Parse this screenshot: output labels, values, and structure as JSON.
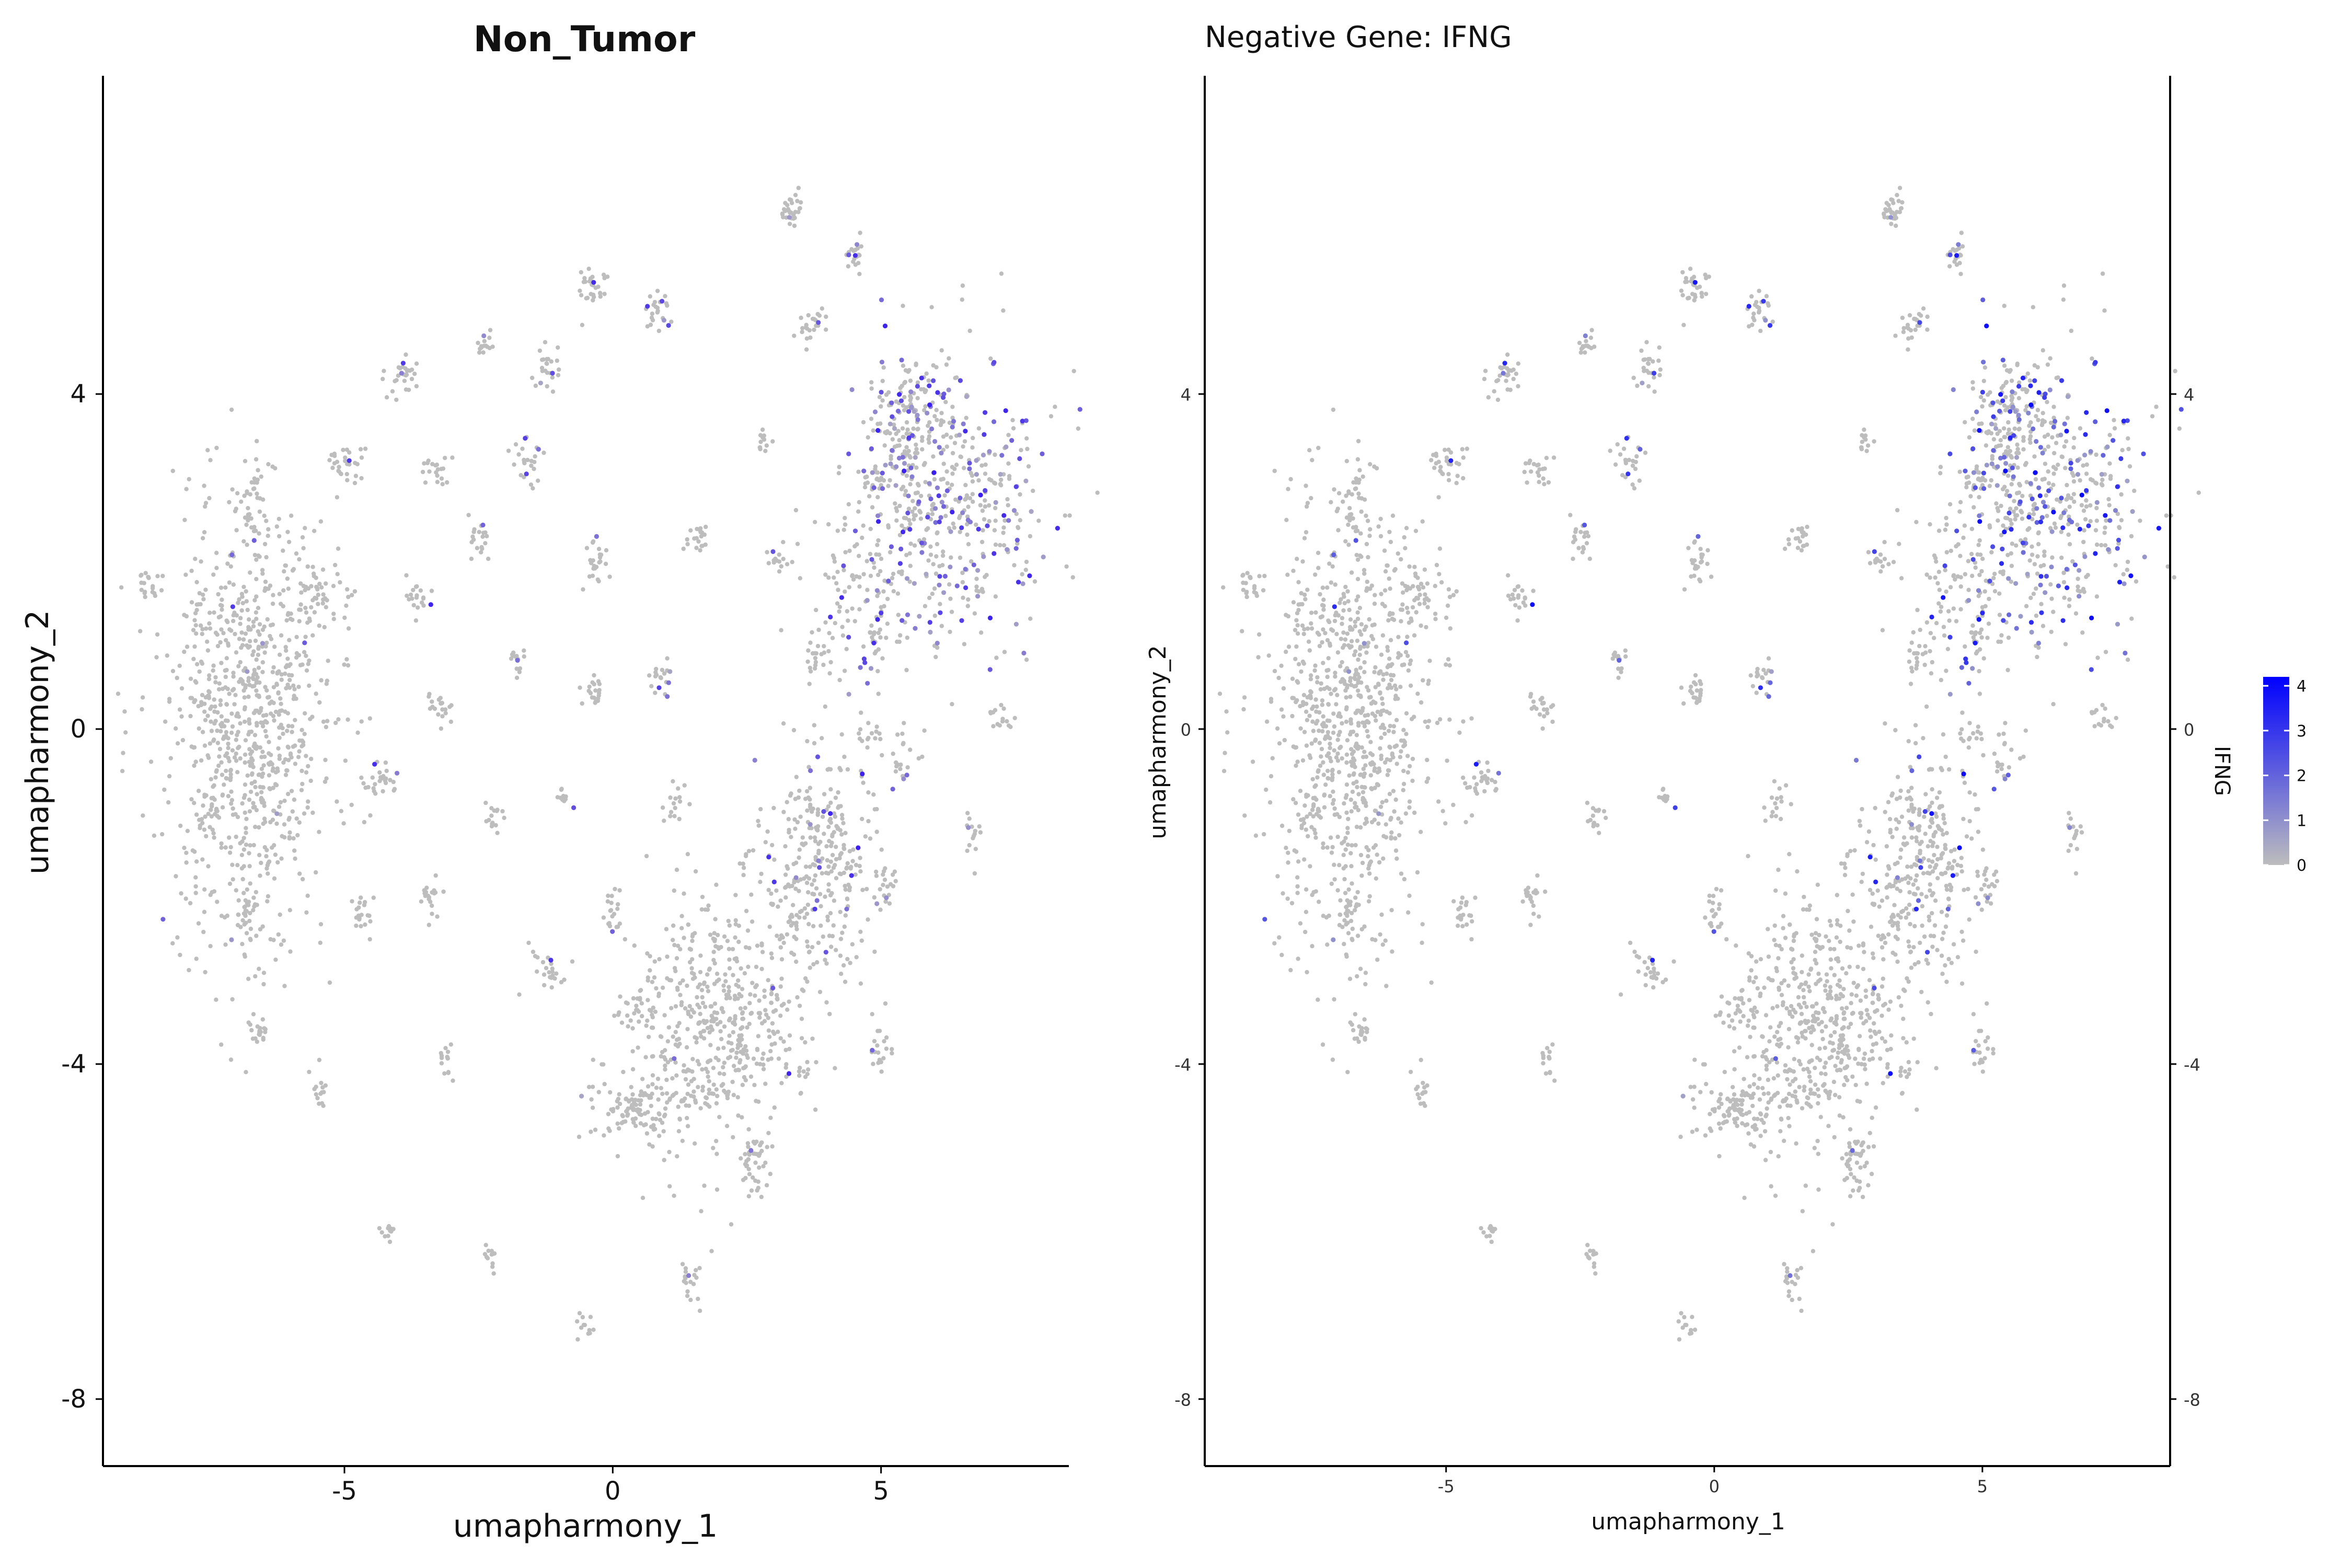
{
  "chart_data": [
    {
      "type": "scatter",
      "title": "Non_Tumor",
      "xlabel": "umapharmony_1",
      "ylabel": "umapharmony_2",
      "xlim": [
        -9.5,
        8.5
      ],
      "ylim": [
        -8.8,
        7.8
      ],
      "x_ticks": [
        -5,
        0,
        5
      ],
      "y_ticks": [
        -8,
        -4,
        0,
        4
      ],
      "grid": false,
      "point_color_low": "#bdbdbd",
      "point_color_high": "#3a1ff0",
      "series": [
        {
          "clusters": [
            {
              "cx": -6.8,
              "cy": 0.0,
              "sx": 0.75,
              "sy": 1.35,
              "n": 900,
              "expr": 0.01
            },
            {
              "cx": -5.5,
              "cy": 1.6,
              "sx": 0.25,
              "sy": 0.25,
              "n": 40,
              "expr": 0.01
            },
            {
              "cx": 2.0,
              "cy": -3.5,
              "sx": 0.75,
              "sy": 0.75,
              "n": 520,
              "expr": 0.01
            },
            {
              "cx": 3.8,
              "cy": -1.6,
              "sx": 0.55,
              "sy": 0.75,
              "n": 330,
              "expr": 0.07
            },
            {
              "cx": 6.3,
              "cy": 2.8,
              "sx": 0.85,
              "sy": 0.85,
              "n": 480,
              "expr": 0.3
            },
            {
              "cx": 5.5,
              "cy": 3.7,
              "sx": 0.4,
              "sy": 0.4,
              "n": 120,
              "expr": 0.15
            },
            {
              "cx": 4.6,
              "cy": 1.5,
              "sx": 0.55,
              "sy": 0.6,
              "n": 120,
              "expr": 0.12
            },
            {
              "cx": 0.4,
              "cy": -4.5,
              "sx": 0.45,
              "sy": 0.2,
              "n": 110,
              "expr": 0.01
            },
            {
              "cx": 2.6,
              "cy": -5.2,
              "sx": 0.12,
              "sy": 0.2,
              "n": 40,
              "expr": 0.01
            },
            {
              "cx": 3.3,
              "cy": 6.2,
              "sx": 0.12,
              "sy": 0.1,
              "n": 30,
              "expr": 0.02
            },
            {
              "cx": 4.5,
              "cy": 5.7,
              "sx": 0.1,
              "sy": 0.1,
              "n": 20,
              "expr": 0.1
            },
            {
              "cx": -0.4,
              "cy": 5.3,
              "sx": 0.14,
              "sy": 0.12,
              "n": 30,
              "expr": 0.05
            },
            {
              "cx": 0.8,
              "cy": 5.0,
              "sx": 0.14,
              "sy": 0.1,
              "n": 25,
              "expr": 0.15
            },
            {
              "cx": 3.7,
              "cy": 4.8,
              "sx": 0.14,
              "sy": 0.12,
              "n": 25,
              "expr": 0.03
            },
            {
              "cx": -1.2,
              "cy": 4.3,
              "sx": 0.12,
              "sy": 0.14,
              "n": 25,
              "expr": 0.02
            },
            {
              "cx": -2.4,
              "cy": 4.6,
              "sx": 0.1,
              "sy": 0.08,
              "n": 15,
              "expr": 0.02
            },
            {
              "cx": -3.9,
              "cy": 4.2,
              "sx": 0.14,
              "sy": 0.12,
              "n": 30,
              "expr": 0.05
            },
            {
              "cx": -5.0,
              "cy": 3.2,
              "sx": 0.18,
              "sy": 0.12,
              "n": 30,
              "expr": 0.05
            },
            {
              "cx": -6.7,
              "cy": 2.7,
              "sx": 0.1,
              "sy": 0.22,
              "n": 30,
              "expr": 0.02
            },
            {
              "cx": -8.7,
              "cy": 1.7,
              "sx": 0.14,
              "sy": 0.1,
              "n": 20,
              "expr": 0.01
            },
            {
              "cx": -3.3,
              "cy": 3.1,
              "sx": 0.12,
              "sy": 0.12,
              "n": 20,
              "expr": 0.02
            },
            {
              "cx": -1.6,
              "cy": 3.2,
              "sx": 0.14,
              "sy": 0.14,
              "n": 25,
              "expr": 0.1
            },
            {
              "cx": -2.5,
              "cy": 2.3,
              "sx": 0.12,
              "sy": 0.12,
              "n": 20,
              "expr": 0.03
            },
            {
              "cx": -3.6,
              "cy": 1.6,
              "sx": 0.12,
              "sy": 0.12,
              "n": 20,
              "expr": 0.03
            },
            {
              "cx": -0.3,
              "cy": 2.0,
              "sx": 0.12,
              "sy": 0.14,
              "n": 25,
              "expr": 0.03
            },
            {
              "cx": 1.6,
              "cy": 2.3,
              "sx": 0.1,
              "sy": 0.1,
              "n": 20,
              "expr": 0.02
            },
            {
              "cx": 2.8,
              "cy": 3.4,
              "sx": 0.08,
              "sy": 0.08,
              "n": 12,
              "expr": 0.05
            },
            {
              "cx": 3.1,
              "cy": 2.0,
              "sx": 0.1,
              "sy": 0.1,
              "n": 15,
              "expr": 0.1
            },
            {
              "cx": -1.8,
              "cy": 0.9,
              "sx": 0.1,
              "sy": 0.12,
              "n": 15,
              "expr": 0.02
            },
            {
              "cx": -0.4,
              "cy": 0.4,
              "sx": 0.12,
              "sy": 0.1,
              "n": 20,
              "expr": 0.02
            },
            {
              "cx": 0.9,
              "cy": 0.6,
              "sx": 0.1,
              "sy": 0.12,
              "n": 20,
              "expr": 0.05
            },
            {
              "cx": -3.2,
              "cy": 0.2,
              "sx": 0.12,
              "sy": 0.1,
              "n": 20,
              "expr": 0.02
            },
            {
              "cx": -4.3,
              "cy": -0.6,
              "sx": 0.16,
              "sy": 0.12,
              "n": 25,
              "expr": 0.02
            },
            {
              "cx": -2.2,
              "cy": -1.1,
              "sx": 0.1,
              "sy": 0.1,
              "n": 15,
              "expr": 0.02
            },
            {
              "cx": -0.9,
              "cy": -0.8,
              "sx": 0.1,
              "sy": 0.08,
              "n": 12,
              "expr": 0.02
            },
            {
              "cx": 1.2,
              "cy": -0.9,
              "sx": 0.1,
              "sy": 0.14,
              "n": 15,
              "expr": 0.03
            },
            {
              "cx": -3.4,
              "cy": -2.0,
              "sx": 0.1,
              "sy": 0.14,
              "n": 20,
              "expr": 0.02
            },
            {
              "cx": -4.7,
              "cy": -2.2,
              "sx": 0.1,
              "sy": 0.14,
              "n": 20,
              "expr": 0.02
            },
            {
              "cx": -6.8,
              "cy": -2.3,
              "sx": 0.1,
              "sy": 0.2,
              "n": 25,
              "expr": 0.02
            },
            {
              "cx": 0.0,
              "cy": -2.2,
              "sx": 0.1,
              "sy": 0.14,
              "n": 20,
              "expr": 0.02
            },
            {
              "cx": -1.2,
              "cy": -2.9,
              "sx": 0.16,
              "sy": 0.14,
              "n": 25,
              "expr": 0.02
            },
            {
              "cx": -6.6,
              "cy": -3.6,
              "sx": 0.1,
              "sy": 0.1,
              "n": 20,
              "expr": 0.02
            },
            {
              "cx": -5.5,
              "cy": -4.3,
              "sx": 0.08,
              "sy": 0.1,
              "n": 15,
              "expr": 0.02
            },
            {
              "cx": -3.1,
              "cy": -4.0,
              "sx": 0.1,
              "sy": 0.1,
              "n": 15,
              "expr": 0.02
            },
            {
              "cx": 3.6,
              "cy": -4.1,
              "sx": 0.08,
              "sy": 0.08,
              "n": 10,
              "expr": 0.05
            },
            {
              "cx": 5.0,
              "cy": -3.8,
              "sx": 0.1,
              "sy": 0.14,
              "n": 20,
              "expr": 0.1
            },
            {
              "cx": 5.1,
              "cy": -1.9,
              "sx": 0.1,
              "sy": 0.12,
              "n": 15,
              "expr": 0.03
            },
            {
              "cx": 4.8,
              "cy": -0.1,
              "sx": 0.1,
              "sy": 0.1,
              "n": 15,
              "expr": 0.05
            },
            {
              "cx": 5.5,
              "cy": -0.3,
              "sx": 0.2,
              "sy": 0.2,
              "n": 20,
              "expr": 0.05
            },
            {
              "cx": 6.7,
              "cy": -1.3,
              "sx": 0.1,
              "sy": 0.14,
              "n": 15,
              "expr": 0.1
            },
            {
              "cx": 7.2,
              "cy": 0.1,
              "sx": 0.12,
              "sy": 0.12,
              "n": 15,
              "expr": 0.05
            },
            {
              "cx": 4.9,
              "cy": 3.0,
              "sx": 0.12,
              "sy": 0.1,
              "n": 20,
              "expr": 0.1
            },
            {
              "cx": 3.8,
              "cy": 0.9,
              "sx": 0.1,
              "sy": 0.1,
              "n": 15,
              "expr": 0.05
            },
            {
              "cx": 4.9,
              "cy": 1.1,
              "sx": 0.1,
              "sy": 0.12,
              "n": 15,
              "expr": 0.05
            },
            {
              "cx": -4.2,
              "cy": -6.0,
              "sx": 0.08,
              "sy": 0.08,
              "n": 12,
              "expr": 0.02
            },
            {
              "cx": -2.3,
              "cy": -6.3,
              "sx": 0.08,
              "sy": 0.06,
              "n": 12,
              "expr": 0.02
            },
            {
              "cx": -0.5,
              "cy": -7.1,
              "sx": 0.08,
              "sy": 0.1,
              "n": 12,
              "expr": 0.02
            },
            {
              "cx": 1.5,
              "cy": -6.6,
              "sx": 0.1,
              "sy": 0.12,
              "n": 20,
              "expr": 0.02
            },
            {
              "cx": 0.5,
              "cy": -3.4,
              "sx": 0.2,
              "sy": 0.15,
              "n": 30,
              "expr": 0.02
            }
          ]
        }
      ]
    },
    {
      "type": "scatter",
      "title": "Negative Gene: IFNG",
      "xlabel": "umapharmony_1",
      "ylabel": "umapharmony_2",
      "xlim": [
        -9.5,
        8.5
      ],
      "ylim": [
        -8.8,
        7.8
      ],
      "x_ticks": [
        -5,
        0,
        5
      ],
      "y_ticks": [
        -8,
        -4,
        0,
        4
      ],
      "y_ticks_right": [
        -8,
        -4,
        0,
        4
      ],
      "grid": false,
      "legend": {
        "title": "IFNG",
        "placement": "right",
        "ticks": [
          0,
          1,
          2,
          3,
          4
        ],
        "range": [
          0,
          4.2
        ],
        "color_low": "#bdbdbd",
        "color_high": "#0000ff"
      }
    }
  ]
}
